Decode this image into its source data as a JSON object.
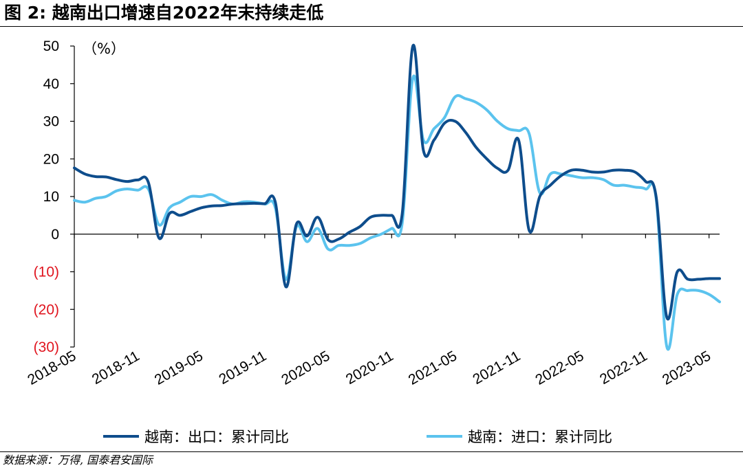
{
  "header": {
    "title": "图 2:  越南出口增速自2022年末持续走低"
  },
  "footer": {
    "source": "数据来源：万得, 国泰君安国际"
  },
  "colors": {
    "export": "#0e4d8c",
    "import": "#5bc3ee",
    "negative_tick": "#e0141e"
  },
  "chart_data": {
    "type": "line",
    "unit_label": "（%）",
    "ylim": [
      -30,
      50
    ],
    "y_ticks": [
      {
        "value": 50,
        "label": "50"
      },
      {
        "value": 40,
        "label": "40"
      },
      {
        "value": 30,
        "label": "30"
      },
      {
        "value": 20,
        "label": "20"
      },
      {
        "value": 10,
        "label": "10"
      },
      {
        "value": 0,
        "label": "0"
      },
      {
        "value": -10,
        "label": "(10)"
      },
      {
        "value": -20,
        "label": "(20)"
      },
      {
        "value": -30,
        "label": "(30)"
      }
    ],
    "x_tick_labels": [
      "2018-05",
      "2018-11",
      "2019-05",
      "2019-11",
      "2020-05",
      "2020-11",
      "2021-05",
      "2021-11",
      "2022-05",
      "2022-11",
      "2023-05"
    ],
    "x": [
      "2018-05",
      "2018-06",
      "2018-07",
      "2018-08",
      "2018-09",
      "2018-10",
      "2018-11",
      "2018-12",
      "2019-01",
      "2019-02",
      "2019-03",
      "2019-04",
      "2019-05",
      "2019-06",
      "2019-07",
      "2019-08",
      "2019-09",
      "2019-10",
      "2019-11",
      "2019-12",
      "2020-01",
      "2020-02",
      "2020-03",
      "2020-04",
      "2020-05",
      "2020-06",
      "2020-07",
      "2020-08",
      "2020-09",
      "2020-10",
      "2020-11",
      "2020-12",
      "2021-01",
      "2021-02",
      "2021-03",
      "2021-04",
      "2021-05",
      "2021-06",
      "2021-07",
      "2021-08",
      "2021-09",
      "2021-10",
      "2021-11",
      "2021-12",
      "2022-01",
      "2022-02",
      "2022-03",
      "2022-04",
      "2022-05",
      "2022-06",
      "2022-07",
      "2022-08",
      "2022-09",
      "2022-10",
      "2022-11",
      "2022-12",
      "2023-01",
      "2023-02",
      "2023-03",
      "2023-04",
      "2023-05",
      "2023-06"
    ],
    "series": [
      {
        "name": "越南：出口：累计同比",
        "values": [
          17.6,
          16,
          15.3,
          15.2,
          14.5,
          14,
          14.4,
          13.8,
          -1,
          5.5,
          5,
          6,
          7,
          7.5,
          7.6,
          8,
          8.1,
          8.2,
          8.1,
          8.5,
          -14,
          2.7,
          -0.5,
          4.5,
          -1.5,
          -1.3,
          0.5,
          2,
          4.5,
          5,
          5,
          5.5,
          50,
          22.3,
          25,
          29.5,
          30,
          27,
          23,
          20,
          17.5,
          17,
          25,
          1,
          10,
          13,
          15.5,
          17,
          17,
          16.5,
          16.5,
          17,
          17,
          16.5,
          14,
          10,
          -22,
          -10,
          -12,
          -12,
          -11.8,
          -11.8
        ]
      },
      {
        "name": "越南：进口：累计同比",
        "values": [
          9,
          8.5,
          9.5,
          10,
          11.5,
          12,
          11.7,
          12,
          2.5,
          7,
          8.5,
          10,
          10,
          10.5,
          9,
          8,
          8.6,
          8.5,
          8,
          7,
          -12,
          2,
          -2,
          1.5,
          -4,
          -3,
          -3,
          -2.5,
          -1,
          0,
          1.5,
          3,
          41.5,
          25,
          28,
          31,
          36.5,
          36,
          35,
          33,
          30,
          28,
          27.5,
          26.7,
          11,
          16,
          16,
          15.5,
          15,
          15,
          14.5,
          13,
          13,
          12.5,
          12,
          9.5,
          -29.8,
          -16,
          -15,
          -15,
          -16,
          -18
        ]
      }
    ]
  },
  "legend": [
    {
      "label": "越南：出口：累计同比"
    },
    {
      "label": "越南：进口：累计同比"
    }
  ]
}
